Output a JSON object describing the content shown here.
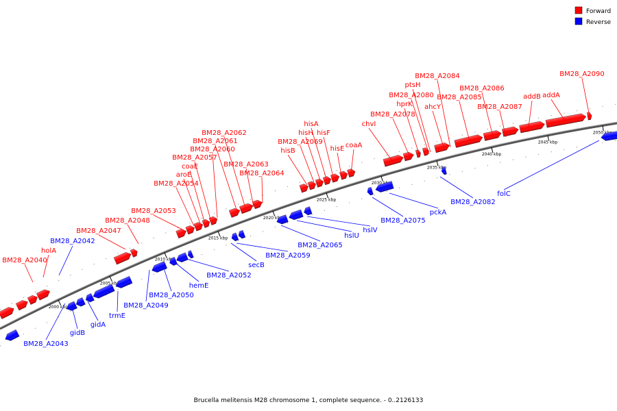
{
  "caption": "Brucella melitensis M28 chromosome 1, complete sequence. - 0..2126133",
  "legend": [
    {
      "label": "Forward",
      "color": "#ff0000"
    },
    {
      "label": "Reverse",
      "color": "#0000ff"
    }
  ],
  "colors": {
    "forward": "#ff0000",
    "reverse": "#0000ff",
    "backbone": "#888888"
  },
  "scale": {
    "ticks": [
      {
        "label": "2000 kbp"
      },
      {
        "label": "2005 kbp"
      },
      {
        "label": "2010 kbp"
      },
      {
        "label": "2015 kbp"
      },
      {
        "label": "2020 kbp"
      },
      {
        "label": "2025 kbp"
      },
      {
        "label": "2030 kbp"
      },
      {
        "label": "2035 kbp"
      },
      {
        "label": "2040 kbp"
      },
      {
        "label": "2045 kbp"
      },
      {
        "label": "2050 kbp"
      }
    ]
  },
  "genes_forward": [
    {
      "label": "BM28_A2040"
    },
    {
      "label": "holA"
    },
    {
      "label": "BM28_A2047"
    },
    {
      "label": "BM28_A2048"
    },
    {
      "label": "BM28_A2053"
    },
    {
      "label": "BM28_A2054"
    },
    {
      "label": "aroE"
    },
    {
      "label": "coaE"
    },
    {
      "label": "BM28_A2057"
    },
    {
      "label": "BM28_A2060"
    },
    {
      "label": "BM28_A2061"
    },
    {
      "label": "BM28_A2062"
    },
    {
      "label": "BM28_A2063"
    },
    {
      "label": "BM28_A2064"
    },
    {
      "label": "hisB"
    },
    {
      "label": "BM28_A2069"
    },
    {
      "label": "hisH"
    },
    {
      "label": "hisA"
    },
    {
      "label": "hisF"
    },
    {
      "label": "hisE"
    },
    {
      "label": "coaA"
    },
    {
      "label": "chvI"
    },
    {
      "label": "BM28_A2078"
    },
    {
      "label": "hprK"
    },
    {
      "label": "BM28_A2080"
    },
    {
      "label": "ptsH"
    },
    {
      "label": "ahcY"
    },
    {
      "label": "BM28_A2084"
    },
    {
      "label": "BM28_A2085"
    },
    {
      "label": "BM28_A2086"
    },
    {
      "label": "BM28_A2087"
    },
    {
      "label": "addB"
    },
    {
      "label": "addA"
    },
    {
      "label": "BM28_A2090"
    }
  ],
  "genes_reverse": [
    {
      "label": "BM28_A2042"
    },
    {
      "label": "BM28_A2043"
    },
    {
      "label": "gidB"
    },
    {
      "label": "gidA"
    },
    {
      "label": "trmE"
    },
    {
      "label": "BM28_A2049"
    },
    {
      "label": "BM28_A2050"
    },
    {
      "label": "hemE"
    },
    {
      "label": "BM28_A2052"
    },
    {
      "label": "secB"
    },
    {
      "label": "BM28_A2059"
    },
    {
      "label": "BM28_A2065"
    },
    {
      "label": "hslU"
    },
    {
      "label": "hslV"
    },
    {
      "label": "BM28_A2075"
    },
    {
      "label": "pckA"
    },
    {
      "label": "BM28_A2082"
    },
    {
      "label": "folC"
    }
  ]
}
